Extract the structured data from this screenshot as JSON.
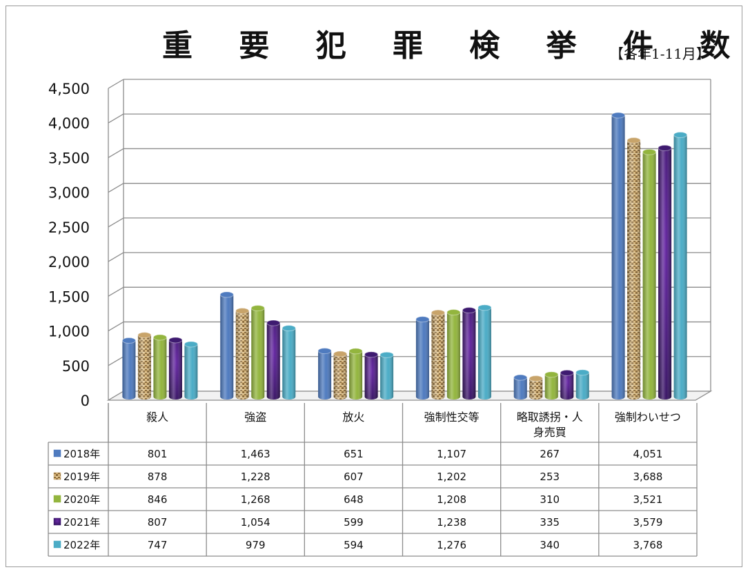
{
  "title": "重 要 犯 罪 検 挙 件 数",
  "subtitle": "【各年1-11月】",
  "colors": {
    "2018年": "#4f7bbf",
    "2019年": "#c8a46a",
    "2020年": "#93b53e",
    "2021年": "#3e1a70",
    "2022年": "#4bacc6"
  },
  "chart_data": {
    "type": "bar",
    "title": "重要犯罪検挙件数",
    "subtitle": "【各年1-11月】",
    "categories": [
      "殺人",
      "強盗",
      "放火",
      "強制性交等",
      "略取誘拐・人身売買",
      "強制わいせつ"
    ],
    "category_lines": [
      [
        "殺人"
      ],
      [
        "強盗"
      ],
      [
        "放火"
      ],
      [
        "強制性交等"
      ],
      [
        "略取誘拐・人",
        "身売買"
      ],
      [
        "強制わいせつ"
      ]
    ],
    "yticks": [
      "0",
      "500",
      "1,000",
      "1,500",
      "2,000",
      "2,500",
      "3,000",
      "3,500",
      "4,000",
      "4,500"
    ],
    "ylim": [
      0,
      4500
    ],
    "grid": true,
    "legend": "data-table-left",
    "series": [
      {
        "name": "2018年",
        "values": [
          801,
          1463,
          651,
          1107,
          267,
          4051
        ],
        "labels": [
          "801",
          "1,463",
          "651",
          "1,107",
          "267",
          "4,051"
        ]
      },
      {
        "name": "2019年",
        "values": [
          878,
          1228,
          607,
          1202,
          253,
          3688
        ],
        "labels": [
          "878",
          "1,228",
          "607",
          "1,202",
          "253",
          "3,688"
        ]
      },
      {
        "name": "2020年",
        "values": [
          846,
          1268,
          648,
          1208,
          310,
          3521
        ],
        "labels": [
          "846",
          "1,268",
          "648",
          "1,208",
          "310",
          "3,521"
        ]
      },
      {
        "name": "2021年",
        "values": [
          807,
          1054,
          599,
          1238,
          335,
          3579
        ],
        "labels": [
          "807",
          "1,054",
          "599",
          "1,238",
          "335",
          "3,579"
        ]
      },
      {
        "name": "2022年",
        "values": [
          747,
          979,
          594,
          1276,
          340,
          3768
        ],
        "labels": [
          "747",
          "979",
          "594",
          "1,276",
          "340",
          "3,768"
        ]
      }
    ]
  }
}
